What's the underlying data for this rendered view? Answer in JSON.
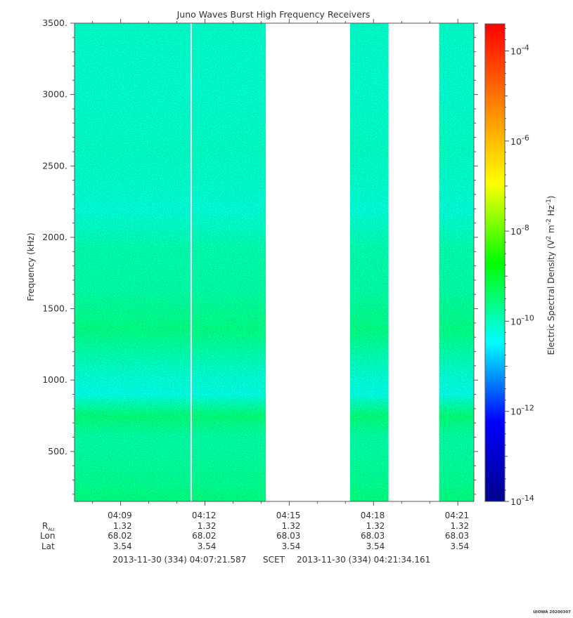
{
  "chart_data": {
    "type": "heatmap",
    "title": "Juno Waves Burst High Frequency Receivers",
    "ylabel": "Frequency (kHz)",
    "ylim": [
      150,
      3500
    ],
    "yticks": [
      {
        "value": 500,
        "label": "500."
      },
      {
        "value": 1000,
        "label": "1000."
      },
      {
        "value": 1500,
        "label": "1500."
      },
      {
        "value": 2000,
        "label": "2000."
      },
      {
        "value": 2500,
        "label": "2500."
      },
      {
        "value": 3000,
        "label": "3000."
      },
      {
        "value": 3500,
        "label": "3500."
      }
    ],
    "xlim": [
      "04:07:21.587",
      "04:21:34.161"
    ],
    "xticks": [
      {
        "time": "04:09",
        "r_au": "1.32",
        "lon": "68.02",
        "lat": "3.54"
      },
      {
        "time": "04:12",
        "r_au": "1.32",
        "lon": "68.02",
        "lat": "3.54"
      },
      {
        "time": "04:15",
        "r_au": "1.32",
        "lon": "68.03",
        "lat": "3.54"
      },
      {
        "time": "04:18",
        "r_au": "1.32",
        "lon": "68.03",
        "lat": "3.54"
      },
      {
        "time": "04:21",
        "r_au": "1.32",
        "lon": "68.03",
        "lat": "3.54"
      }
    ],
    "ephemeris_labels": {
      "r": "R",
      "r_sub": "AU",
      "lon": "Lon",
      "lat": "Lat"
    },
    "data_segments": [
      {
        "start": "04:07:21",
        "end": "04:11:29"
      },
      {
        "start": "04:11:32",
        "end": "04:14:10"
      },
      {
        "start": "04:17:10",
        "end": "04:18:32"
      },
      {
        "start": "04:20:20",
        "end": "04:21:34"
      }
    ],
    "colorbar": {
      "label_parts": [
        "Electric Spectral Density (V",
        "2",
        " m",
        "-2",
        " Hz",
        "-1",
        ")"
      ],
      "scale": "log",
      "range_exp": [
        -14,
        -3.4
      ],
      "ticks": [
        {
          "base": "10",
          "exp": "-4"
        },
        {
          "base": "10",
          "exp": "-6"
        },
        {
          "base": "10",
          "exp": "-8"
        },
        {
          "base": "10",
          "exp": "-10"
        },
        {
          "base": "10",
          "exp": "-12"
        },
        {
          "base": "10",
          "exp": "-14"
        }
      ],
      "colors": [
        "#00008b",
        "#0000ff",
        "#00ffff",
        "#00ff00",
        "#ffff00",
        "#ff8000",
        "#ff0000"
      ]
    },
    "intensity_profile": [
      {
        "freq": 150,
        "exp": -9.55
      },
      {
        "freq": 300,
        "exp": -9.7
      },
      {
        "freq": 600,
        "exp": -9.85
      },
      {
        "freq": 750,
        "exp": -9.5
      },
      {
        "freq": 900,
        "exp": -10.3
      },
      {
        "freq": 1050,
        "exp": -10.15
      },
      {
        "freq": 1350,
        "exp": -9.6
      },
      {
        "freq": 1650,
        "exp": -9.85
      },
      {
        "freq": 1900,
        "exp": -9.9
      },
      {
        "freq": 2200,
        "exp": -10.2
      },
      {
        "freq": 2600,
        "exp": -10.05
      },
      {
        "freq": 3000,
        "exp": -10.15
      },
      {
        "freq": 3500,
        "exp": -10.1
      }
    ],
    "time_range": {
      "start": "2013-11-30 (334) 04:07:21.587",
      "label": "SCET",
      "end": "2013-11-30 (334) 04:21:34.161"
    },
    "credit": "UIOWA 20200307"
  }
}
